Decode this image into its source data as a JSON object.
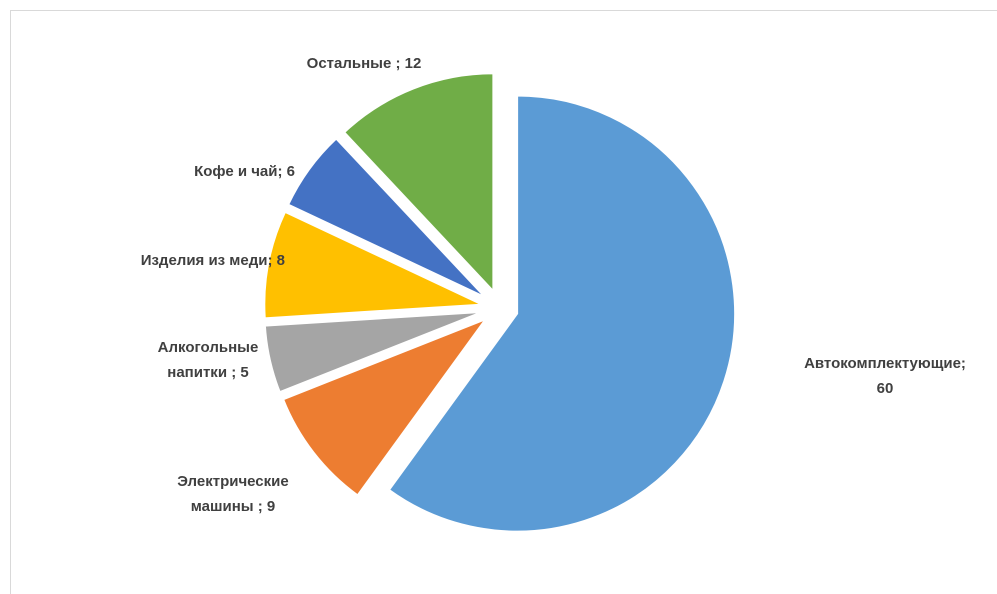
{
  "chart_data": {
    "type": "pie",
    "exploded": true,
    "start_angle_deg": 0,
    "direction": "clockwise",
    "slices": [
      {
        "label_lines": [
          "Автокомплектующие;",
          "60"
        ],
        "value": 60,
        "color": "#5B9BD5",
        "label_side": "right"
      },
      {
        "label_lines": [
          "Электрические",
          "машины ; 9"
        ],
        "value": 9,
        "color": "#ED7D31",
        "label_side": "left"
      },
      {
        "label_lines": [
          "Алкогольные",
          "напитки ; 5"
        ],
        "value": 5,
        "color": "#A5A5A5",
        "label_side": "left"
      },
      {
        "label_lines": [
          "Изделия из меди; 8"
        ],
        "value": 8,
        "color": "#FFC000",
        "label_side": "left"
      },
      {
        "label_lines": [
          "Кофе и чай; 6"
        ],
        "value": 6,
        "color": "#4472C4",
        "label_side": "left"
      },
      {
        "label_lines": [
          "Остальные ; 12"
        ],
        "value": 12,
        "color": "#70AD47",
        "label_side": "top"
      }
    ]
  }
}
